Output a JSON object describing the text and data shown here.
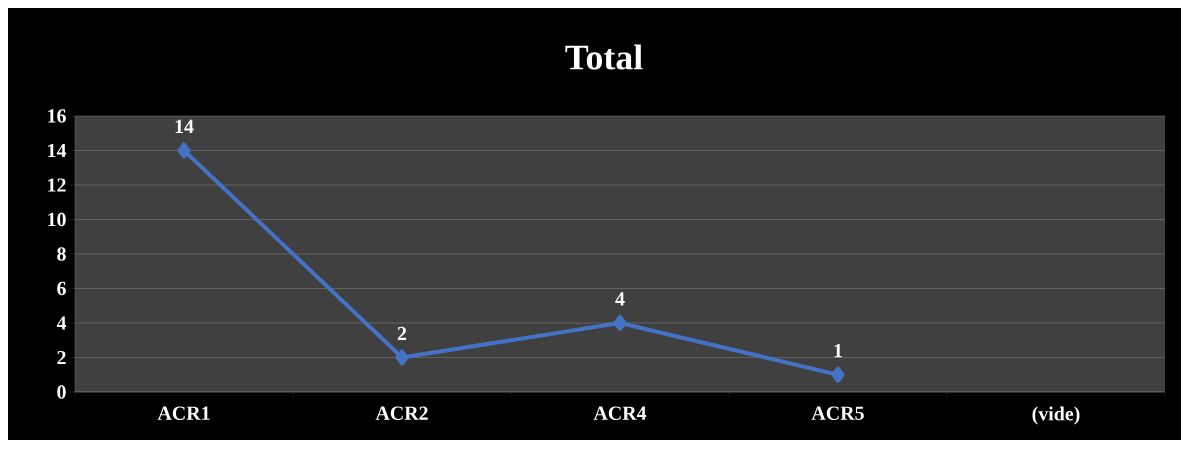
{
  "chart_data": {
    "type": "line",
    "title": "Total",
    "categories": [
      "ACR1",
      "ACR2",
      "ACR4",
      "ACR5",
      "(vide)"
    ],
    "values": [
      14,
      2,
      4,
      1,
      null
    ],
    "color": "#4472c4",
    "marker": "diamond",
    "line_style": "solid",
    "data_labels": true,
    "grid": "y",
    "ylim": [
      0,
      16
    ],
    "yticks": [
      0,
      2,
      4,
      6,
      8,
      10,
      12,
      14,
      16
    ]
  }
}
